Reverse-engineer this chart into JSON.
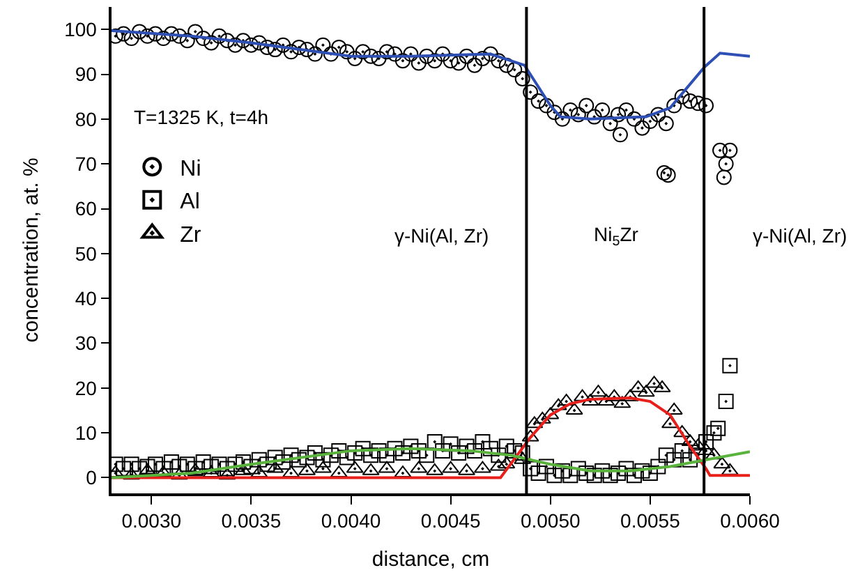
{
  "chart_data": {
    "type": "scatter",
    "xlabel": "distance, cm",
    "ylabel": "concentration, at. %",
    "xlim": [
      0.0028,
      0.006
    ],
    "ylim": [
      -3.5,
      105
    ],
    "xticks": [
      {
        "value": 0.003,
        "label": "0.0030"
      },
      {
        "value": 0.0035,
        "label": "0.0035"
      },
      {
        "value": 0.004,
        "label": "0.0040"
      },
      {
        "value": 0.0045,
        "label": "0.0045"
      },
      {
        "value": 0.005,
        "label": "0.0050"
      },
      {
        "value": 0.0055,
        "label": "0.0055"
      },
      {
        "value": 0.006,
        "label": "0.0060"
      }
    ],
    "yticks": [
      0,
      10,
      20,
      30,
      40,
      50,
      60,
      70,
      80,
      90,
      100
    ],
    "legend": "left",
    "annotations": [
      "T=1325 K, t=4h",
      "γ-Ni(Al, Zr)",
      "Ni$_{5}$Zr",
      "γ-Ni(Al, Zr)"
    ],
    "ref_lines": [
      {
        "axis": "x",
        "value": 0.00488,
        "color": "#000000"
      },
      {
        "axis": "x",
        "value": 0.00577,
        "color": "#000000"
      }
    ],
    "series": [
      {
        "name": "Ni",
        "type": "scatter",
        "marker": "circle",
        "color": "#000000",
        "x": [
          0.00282,
          0.00286,
          0.0029,
          0.00294,
          0.00298,
          0.00302,
          0.00306,
          0.0031,
          0.00314,
          0.00318,
          0.00322,
          0.00326,
          0.0033,
          0.00334,
          0.00338,
          0.00342,
          0.00346,
          0.0035,
          0.00354,
          0.00358,
          0.00362,
          0.00366,
          0.0037,
          0.00374,
          0.00378,
          0.00382,
          0.00386,
          0.0039,
          0.00394,
          0.00398,
          0.00402,
          0.00406,
          0.0041,
          0.00414,
          0.00418,
          0.00422,
          0.00426,
          0.0043,
          0.00434,
          0.00438,
          0.00442,
          0.00446,
          0.0045,
          0.00454,
          0.00458,
          0.00462,
          0.00466,
          0.0047,
          0.00474,
          0.00478,
          0.00482,
          0.00486,
          0.0049,
          0.00494,
          0.00498,
          0.00502,
          0.00506,
          0.0051,
          0.00514,
          0.00518,
          0.00522,
          0.00526,
          0.0053,
          0.00534,
          0.00535,
          0.00538,
          0.00542,
          0.00546,
          0.0055,
          0.00554,
          0.00557,
          0.00559,
          0.00558,
          0.00562,
          0.00566,
          0.0057,
          0.00574,
          0.00578,
          0.00585,
          0.0059,
          0.00588,
          0.00587
        ],
        "values": [
          98.5,
          99,
          98,
          99.5,
          98.5,
          99,
          98,
          99,
          98.5,
          97.5,
          99.5,
          98,
          97,
          98.5,
          97.5,
          96.5,
          97.5,
          96.5,
          97,
          96,
          95.5,
          96.5,
          95,
          96,
          95.5,
          94.5,
          96.5,
          94.5,
          96,
          95,
          93.5,
          95,
          94,
          93.5,
          95,
          94.5,
          93,
          94.5,
          92.5,
          94,
          93,
          94.5,
          93,
          92.5,
          94,
          92,
          93.5,
          94.5,
          93,
          92,
          91,
          89,
          86,
          84,
          83,
          81.5,
          80,
          82,
          81,
          83,
          80.5,
          82,
          79,
          81,
          76.5,
          82,
          80,
          78,
          79.5,
          81,
          68,
          67.5,
          79,
          83,
          85,
          84,
          83.5,
          83,
          73,
          73,
          70,
          67
        ]
      },
      {
        "name": "Al",
        "type": "scatter",
        "marker": "square",
        "color": "#000000",
        "x": [
          0.00282,
          0.00286,
          0.0029,
          0.00294,
          0.00298,
          0.00302,
          0.00306,
          0.0031,
          0.00314,
          0.00318,
          0.00322,
          0.00326,
          0.0033,
          0.00334,
          0.00338,
          0.00342,
          0.00346,
          0.0035,
          0.00354,
          0.00358,
          0.00362,
          0.00366,
          0.0037,
          0.00374,
          0.00378,
          0.00382,
          0.00386,
          0.0039,
          0.00394,
          0.00398,
          0.00402,
          0.00406,
          0.0041,
          0.00414,
          0.00418,
          0.00422,
          0.00426,
          0.0043,
          0.00434,
          0.00438,
          0.00442,
          0.00446,
          0.0045,
          0.00454,
          0.00458,
          0.00462,
          0.00466,
          0.0047,
          0.00474,
          0.00478,
          0.00482,
          0.00486,
          0.0049,
          0.00494,
          0.00498,
          0.00502,
          0.00506,
          0.0051,
          0.00514,
          0.00518,
          0.00522,
          0.00526,
          0.0053,
          0.00534,
          0.00538,
          0.00542,
          0.00546,
          0.0055,
          0.00554,
          0.00558,
          0.00562,
          0.00566,
          0.0057,
          0.00574,
          0.00578,
          0.00582,
          0.00584,
          0.00588,
          0.0059
        ],
        "values": [
          3,
          2,
          3,
          2,
          2.5,
          3,
          2,
          3.5,
          2.5,
          3,
          2,
          3.5,
          2.5,
          3,
          2,
          3,
          3.5,
          2.5,
          4,
          3,
          4.5,
          3.5,
          5,
          4,
          4.5,
          5.5,
          4,
          5,
          6,
          4.5,
          5.5,
          6.5,
          5,
          6,
          5,
          6.5,
          5.5,
          7,
          6,
          5,
          8,
          6,
          7.5,
          5.5,
          7,
          6,
          8,
          6.5,
          5,
          7,
          6,
          5.5,
          2,
          1,
          2.5,
          0.5,
          1.5,
          0.5,
          2,
          1,
          0.5,
          1.5,
          0.5,
          1,
          2,
          0.5,
          1.5,
          1,
          2.5,
          5,
          4,
          6,
          4,
          5,
          8,
          10,
          11,
          17,
          25
        ]
      },
      {
        "name": "Zr",
        "type": "scatter",
        "marker": "triangle",
        "color": "#000000",
        "x": [
          0.00282,
          0.0029,
          0.00298,
          0.00306,
          0.00314,
          0.00322,
          0.0033,
          0.00338,
          0.00346,
          0.00354,
          0.00362,
          0.0037,
          0.00378,
          0.00386,
          0.00394,
          0.00402,
          0.0041,
          0.00418,
          0.00426,
          0.00434,
          0.00442,
          0.0045,
          0.00458,
          0.00466,
          0.00474,
          0.00478,
          0.00486,
          0.0049,
          0.00492,
          0.00496,
          0.005,
          0.00504,
          0.00508,
          0.00512,
          0.00516,
          0.0052,
          0.00524,
          0.00528,
          0.00532,
          0.00536,
          0.0054,
          0.00544,
          0.00548,
          0.00552,
          0.00556,
          0.0056,
          0.00562,
          0.00566,
          0.0057,
          0.00574,
          0.00578,
          0.00582,
          0.00586,
          0.0059
        ],
        "values": [
          1,
          0.5,
          1.5,
          1,
          0.5,
          1.5,
          1,
          0.5,
          1.5,
          1,
          2,
          1,
          1.5,
          2,
          1,
          2,
          1.5,
          2,
          1,
          2,
          1.5,
          2,
          1.5,
          2,
          2.5,
          3,
          4,
          9,
          12,
          13,
          14,
          16,
          17,
          15,
          18,
          17,
          19,
          17,
          18,
          16.5,
          18,
          20,
          19,
          21,
          20,
          12,
          15,
          10,
          8,
          7,
          6,
          5,
          3,
          1.5
        ]
      },
      {
        "type": "line",
        "color": "#2e4fb4",
        "line_style": "solid",
        "marker": "none",
        "x": [
          0.0028,
          0.0032,
          0.0035,
          0.004,
          0.0043,
          0.0047,
          0.00487,
          0.005,
          0.00505,
          0.0052,
          0.00548,
          0.0056,
          0.00577,
          0.00585,
          0.006
        ],
        "values": [
          99.7,
          98.5,
          97,
          94,
          94,
          94.5,
          92,
          83,
          80.5,
          80,
          80.5,
          82.5,
          91.5,
          94.7,
          94
        ]
      },
      {
        "type": "line",
        "color": "#e8201c",
        "line_style": "solid",
        "marker": "none",
        "x": [
          0.0028,
          0.0035,
          0.0042,
          0.00475,
          0.0048,
          0.0049,
          0.005,
          0.0051,
          0.0052,
          0.0054,
          0.0055,
          0.0056,
          0.0057,
          0.00578,
          0.0058,
          0.006
        ],
        "values": [
          0,
          0,
          0,
          0,
          3,
          9,
          14,
          16.5,
          17.5,
          17.8,
          17,
          14,
          7,
          2,
          0.5,
          0.5
        ]
      },
      {
        "type": "line",
        "color": "#5ab33c",
        "line_style": "solid",
        "marker": "none",
        "x": [
          0.0028,
          0.0032,
          0.0035,
          0.004,
          0.0043,
          0.0046,
          0.0048,
          0.005,
          0.0052,
          0.0054,
          0.0056,
          0.00578,
          0.006
        ],
        "values": [
          0,
          1,
          3,
          6,
          6.5,
          6,
          5,
          3,
          1.5,
          1.5,
          2.5,
          4,
          5.8
        ]
      }
    ]
  }
}
